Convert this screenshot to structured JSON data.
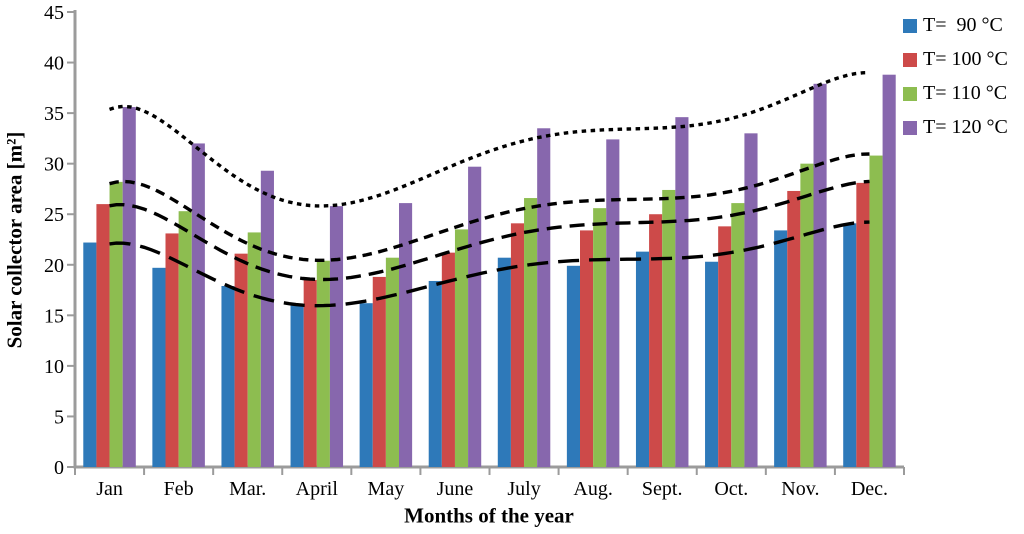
{
  "chart_data": {
    "type": "bar",
    "title": "",
    "xlabel": "Months of the year",
    "ylabel": "Solar collector area [m²]",
    "ylim": [
      0,
      45
    ],
    "yticks": [
      0,
      5,
      10,
      15,
      20,
      25,
      30,
      35,
      40,
      45
    ],
    "categories": [
      "Jan",
      "Feb",
      "Mar.",
      "April",
      "May",
      "June",
      "July",
      "Aug.",
      "Sept.",
      "Oct.",
      "Nov.",
      "Dec."
    ],
    "series": [
      {
        "name": "T=  90 °C",
        "color": "#2E79B9",
        "values": [
          22.2,
          19.7,
          17.9,
          16.0,
          16.2,
          18.4,
          20.7,
          19.9,
          21.3,
          20.3,
          23.4,
          24.1
        ]
      },
      {
        "name": "T= 100 °C",
        "color": "#CD4A49",
        "values": [
          26.0,
          23.1,
          21.1,
          18.5,
          18.8,
          21.2,
          24.1,
          23.4,
          25.0,
          23.8,
          27.3,
          28.1
        ]
      },
      {
        "name": "T= 110 °C",
        "color": "#8DBD50",
        "values": [
          28.2,
          25.3,
          23.2,
          20.4,
          20.7,
          23.5,
          26.6,
          25.6,
          27.4,
          26.1,
          30.0,
          30.8
        ]
      },
      {
        "name": "T= 120 °C",
        "color": "#8767AD",
        "values": [
          35.6,
          32.0,
          29.3,
          25.8,
          26.1,
          29.7,
          33.5,
          32.4,
          34.6,
          33.0,
          37.9,
          38.8
        ]
      }
    ],
    "trendlines": "one black dashed polynomial trend curve per series, dash length decreasing from the 90 °C curve (long dashes) to the 120 °C curve (fine dots)",
    "legend_position": "top-right",
    "grid": false,
    "axis_color": "#9B9B9B",
    "text_color": "#000000",
    "background_color": "#FFFFFF"
  }
}
